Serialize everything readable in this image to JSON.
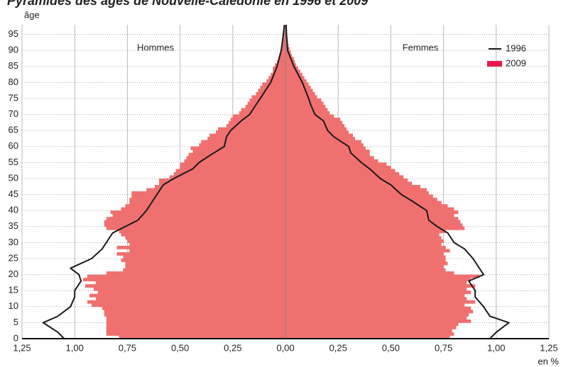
{
  "chart_data": {
    "type": "pyramid",
    "title": "Pyramides des âges de Nouvelle-Calédonie en 1996 et 2009",
    "y_label": "âge",
    "x_unit": "en %",
    "left_label": "Hommes",
    "right_label": "Femmes",
    "ylim": [
      0,
      98
    ],
    "yticks": [
      0,
      5,
      10,
      15,
      20,
      25,
      30,
      35,
      40,
      45,
      50,
      55,
      60,
      65,
      70,
      75,
      80,
      85,
      90,
      95
    ],
    "xlim": [
      0,
      1.25
    ],
    "xticks": [
      {
        "value": 0,
        "label": "0,00"
      },
      {
        "value": 0.25,
        "label": "0,25"
      },
      {
        "value": 0.5,
        "label": "0,50"
      },
      {
        "value": 0.75,
        "label": "0,75"
      },
      {
        "value": 1,
        "label": "1,00"
      },
      {
        "value": 1.25,
        "label": "1,25"
      }
    ],
    "grid": true,
    "legend": "upper right",
    "series": [
      {
        "name": "1996",
        "color": "#1a1a1a",
        "kind": "line",
        "x": [
          0,
          2,
          5,
          7,
          10,
          13,
          15,
          18,
          20,
          22,
          25,
          28,
          30,
          33,
          35,
          37,
          40,
          43,
          45,
          48,
          50,
          53,
          55,
          58,
          60,
          63,
          65,
          68,
          70,
          73,
          75,
          80,
          85,
          90,
          95,
          98
        ],
        "men": [
          1.05,
          1.08,
          1.15,
          1.08,
          1.02,
          1.0,
          1.0,
          0.97,
          0.98,
          1.02,
          0.92,
          0.87,
          0.85,
          0.82,
          0.76,
          0.7,
          0.66,
          0.63,
          0.61,
          0.58,
          0.53,
          0.44,
          0.41,
          0.34,
          0.29,
          0.28,
          0.26,
          0.21,
          0.17,
          0.14,
          0.12,
          0.07,
          0.04,
          0.02,
          0.01,
          0.005
        ],
        "women": [
          0.97,
          1.0,
          1.06,
          0.97,
          0.94,
          0.9,
          0.9,
          0.87,
          0.94,
          0.92,
          0.89,
          0.85,
          0.8,
          0.77,
          0.72,
          0.68,
          0.67,
          0.6,
          0.55,
          0.5,
          0.45,
          0.4,
          0.36,
          0.31,
          0.3,
          0.23,
          0.2,
          0.18,
          0.14,
          0.12,
          0.11,
          0.08,
          0.04,
          0.01,
          0.005,
          0.003
        ]
      },
      {
        "name": "2009",
        "color": "#f07070",
        "kind": "bar",
        "x": [
          0,
          1,
          2,
          3,
          4,
          5,
          6,
          7,
          8,
          9,
          10,
          11,
          12,
          13,
          14,
          15,
          16,
          17,
          18,
          19,
          20,
          21,
          22,
          23,
          24,
          25,
          26,
          27,
          28,
          29,
          30,
          31,
          32,
          33,
          34,
          35,
          36,
          37,
          38,
          39,
          40,
          41,
          42,
          43,
          44,
          45,
          46,
          47,
          48,
          49,
          50,
          51,
          52,
          53,
          54,
          55,
          56,
          57,
          58,
          59,
          60,
          61,
          62,
          63,
          64,
          65,
          66,
          67,
          68,
          69,
          70,
          71,
          72,
          73,
          74,
          75,
          76,
          77,
          78,
          79,
          80,
          81,
          82,
          83,
          84,
          85,
          86,
          87,
          88,
          89,
          90,
          91,
          92,
          93,
          94,
          95,
          96,
          97
        ],
        "men": [
          0.79,
          0.85,
          0.85,
          0.85,
          0.85,
          0.85,
          0.85,
          0.86,
          0.86,
          0.87,
          0.92,
          0.94,
          0.9,
          0.93,
          0.89,
          0.91,
          0.95,
          0.9,
          0.96,
          0.94,
          0.85,
          0.77,
          0.76,
          0.76,
          0.78,
          0.77,
          0.8,
          0.74,
          0.8,
          0.74,
          0.75,
          0.76,
          0.78,
          0.79,
          0.85,
          0.86,
          0.86,
          0.85,
          0.82,
          0.83,
          0.78,
          0.76,
          0.74,
          0.74,
          0.73,
          0.73,
          0.66,
          0.62,
          0.6,
          0.6,
          0.55,
          0.53,
          0.52,
          0.5,
          0.5,
          0.48,
          0.47,
          0.46,
          0.44,
          0.45,
          0.41,
          0.4,
          0.37,
          0.36,
          0.33,
          0.32,
          0.28,
          0.27,
          0.26,
          0.25,
          0.22,
          0.21,
          0.19,
          0.18,
          0.17,
          0.16,
          0.14,
          0.13,
          0.12,
          0.11,
          0.09,
          0.08,
          0.07,
          0.06,
          0.06,
          0.05,
          0.04,
          0.035,
          0.03,
          0.025,
          0.02,
          0.015,
          0.012,
          0.01,
          0.008,
          0.006,
          0.004,
          0.003
        ],
        "women": [
          0.78,
          0.8,
          0.79,
          0.81,
          0.82,
          0.88,
          0.86,
          0.87,
          0.89,
          0.88,
          0.85,
          0.9,
          0.86,
          0.85,
          0.88,
          0.86,
          0.9,
          0.86,
          0.88,
          0.92,
          0.8,
          0.76,
          0.75,
          0.77,
          0.76,
          0.76,
          0.75,
          0.78,
          0.76,
          0.74,
          0.75,
          0.74,
          0.73,
          0.76,
          0.85,
          0.84,
          0.83,
          0.82,
          0.8,
          0.82,
          0.8,
          0.77,
          0.74,
          0.72,
          0.7,
          0.68,
          0.67,
          0.64,
          0.6,
          0.58,
          0.56,
          0.54,
          0.52,
          0.5,
          0.48,
          0.44,
          0.42,
          0.4,
          0.4,
          0.38,
          0.37,
          0.36,
          0.33,
          0.32,
          0.3,
          0.29,
          0.28,
          0.27,
          0.26,
          0.23,
          0.21,
          0.2,
          0.19,
          0.18,
          0.17,
          0.15,
          0.14,
          0.13,
          0.12,
          0.11,
          0.1,
          0.09,
          0.08,
          0.07,
          0.06,
          0.05,
          0.045,
          0.04,
          0.03,
          0.025,
          0.02,
          0.015,
          0.012,
          0.01,
          0.008,
          0.006,
          0.004,
          0.003
        ]
      }
    ]
  }
}
